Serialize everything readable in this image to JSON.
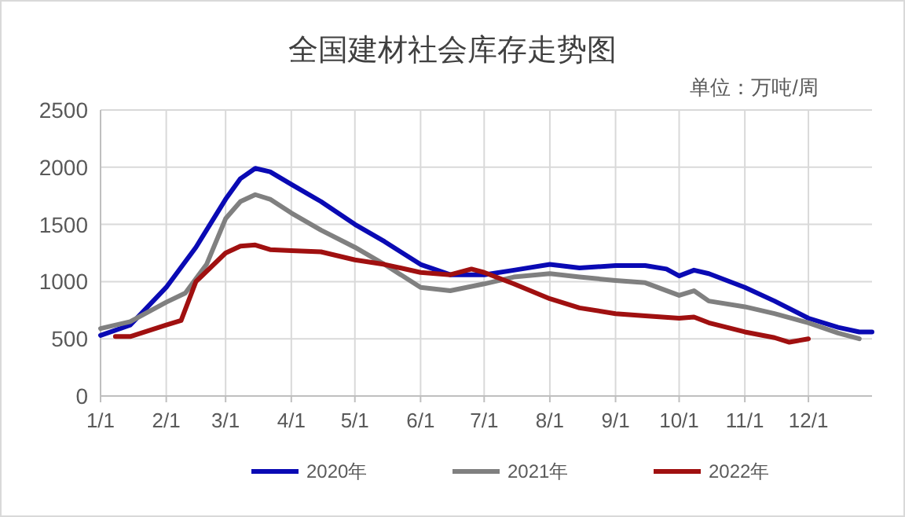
{
  "chart_data": {
    "type": "line",
    "title": "全国建材社会库存走势图",
    "annotations": [
      "单位：万吨/周"
    ],
    "xlim": [
      "--01-01",
      "--12-31"
    ],
    "xticks": [
      {
        "value": "--01-01",
        "label": "1/1"
      },
      {
        "value": "--02-01",
        "label": "2/1"
      },
      {
        "value": "--03-01",
        "label": "3/1"
      },
      {
        "value": "--04-01",
        "label": "4/1"
      },
      {
        "value": "--05-01",
        "label": "5/1"
      },
      {
        "value": "--06-01",
        "label": "6/1"
      },
      {
        "value": "--07-01",
        "label": "7/1"
      },
      {
        "value": "--08-01",
        "label": "8/1"
      },
      {
        "value": "--09-01",
        "label": "9/1"
      },
      {
        "value": "--10-01",
        "label": "10/1"
      },
      {
        "value": "--11-01",
        "label": "11/1"
      },
      {
        "value": "--12-01",
        "label": "12/1"
      }
    ],
    "ylim": [
      0,
      2500
    ],
    "yticks": [
      0,
      500,
      1000,
      1500,
      2000,
      2500
    ],
    "grid": true,
    "legend": "bottom",
    "marker": "none",
    "line_style": "solid",
    "series": [
      {
        "name": "2020年",
        "color": "#0a0ab4",
        "x": [
          "--01-01",
          "--01-15",
          "--02-01",
          "--02-15",
          "--03-01",
          "--03-08",
          "--03-15",
          "--03-22",
          "--04-01",
          "--04-15",
          "--05-01",
          "--05-15",
          "--06-01",
          "--06-15",
          "--07-01",
          "--07-15",
          "--08-01",
          "--08-15",
          "--09-01",
          "--09-15",
          "--09-25",
          "--10-01",
          "--10-08",
          "--10-15",
          "--11-01",
          "--11-15",
          "--12-01",
          "--12-15",
          "--12-25",
          "--12-31"
        ],
        "values": [
          530,
          620,
          950,
          1300,
          1720,
          1900,
          1990,
          1960,
          1850,
          1700,
          1500,
          1350,
          1150,
          1060,
          1060,
          1100,
          1150,
          1120,
          1140,
          1140,
          1110,
          1050,
          1100,
          1070,
          950,
          830,
          680,
          600,
          560,
          560
        ]
      },
      {
        "name": "2021年",
        "color": "#808080",
        "x": [
          "--01-01",
          "--01-15",
          "--02-01",
          "--02-10",
          "--02-20",
          "--03-01",
          "--03-08",
          "--03-15",
          "--03-22",
          "--04-01",
          "--04-15",
          "--05-01",
          "--05-15",
          "--06-01",
          "--06-15",
          "--07-01",
          "--07-15",
          "--08-01",
          "--08-15",
          "--09-01",
          "--09-15",
          "--10-01",
          "--10-08",
          "--10-15",
          "--11-01",
          "--11-15",
          "--12-01",
          "--12-15",
          "--12-25"
        ],
        "values": [
          590,
          650,
          820,
          900,
          1150,
          1550,
          1700,
          1760,
          1720,
          1600,
          1450,
          1300,
          1150,
          950,
          920,
          980,
          1040,
          1070,
          1040,
          1010,
          990,
          880,
          920,
          830,
          780,
          720,
          640,
          550,
          500
        ]
      },
      {
        "name": "2022年",
        "color": "#a01010",
        "x": [
          "--01-08",
          "--01-15",
          "--02-01",
          "--02-08",
          "--02-15",
          "--03-01",
          "--03-08",
          "--03-15",
          "--03-22",
          "--04-01",
          "--04-15",
          "--05-01",
          "--05-15",
          "--06-01",
          "--06-15",
          "--06-25",
          "--07-01",
          "--07-15",
          "--08-01",
          "--08-15",
          "--09-01",
          "--09-15",
          "--10-01",
          "--10-08",
          "--10-15",
          "--11-01",
          "--11-15",
          "--11-22",
          "--12-01"
        ],
        "values": [
          520,
          520,
          620,
          660,
          1000,
          1250,
          1310,
          1320,
          1280,
          1270,
          1260,
          1190,
          1150,
          1080,
          1060,
          1110,
          1080,
          980,
          850,
          770,
          720,
          700,
          680,
          690,
          640,
          560,
          510,
          470,
          500
        ]
      }
    ]
  }
}
